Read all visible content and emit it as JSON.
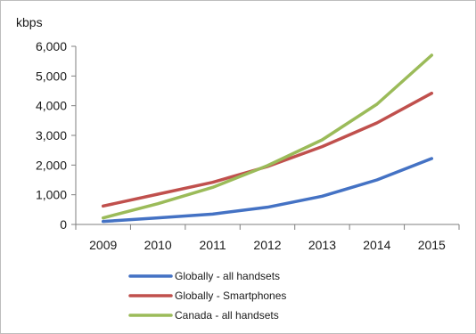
{
  "chart_data": {
    "type": "line",
    "title": "",
    "xlabel": "",
    "ylabel": "kbps",
    "ylim": [
      0,
      6000
    ],
    "y_ticks": [
      0,
      1000,
      2000,
      3000,
      4000,
      5000,
      6000
    ],
    "y_tick_labels": [
      "0",
      "1,000",
      "2,000",
      "3,000",
      "4,000",
      "5,000",
      "6,000"
    ],
    "categories": [
      "2009",
      "2010",
      "2011",
      "2012",
      "2013",
      "2014",
      "2015"
    ],
    "grid": false,
    "legend_position": "bottom",
    "series": [
      {
        "name": "Globally - all handsets",
        "color": "#4472c4",
        "values": [
          100,
          220,
          350,
          580,
          950,
          1500,
          2220
        ]
      },
      {
        "name": "Globally - Smartphones",
        "color": "#c0504d",
        "values": [
          620,
          1020,
          1420,
          1950,
          2620,
          3420,
          4420
        ]
      },
      {
        "name": "Canada - all handsets",
        "color": "#9bbb59",
        "values": [
          220,
          700,
          1250,
          1980,
          2850,
          4050,
          5700
        ]
      }
    ]
  }
}
